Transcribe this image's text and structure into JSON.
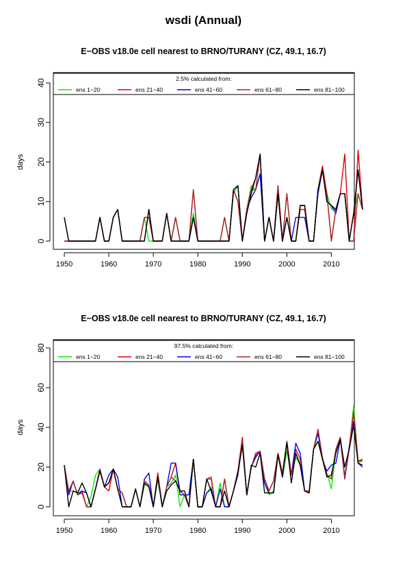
{
  "page_title": "wsdi (Annual)",
  "chart_data": [
    {
      "type": "line",
      "title": "E−OBS v18.0e cell nearest to BRNO/TURANY (CZ, 49.1, 16.7)",
      "legend_title": "2.5% calculated from:",
      "ylabel": "days",
      "xlim": [
        1950,
        2017
      ],
      "ylim": [
        0,
        40
      ],
      "x_ticks": [
        1950,
        1960,
        1970,
        1980,
        1990,
        2000,
        2010
      ],
      "y_ticks": [
        0,
        10,
        20,
        30,
        40
      ],
      "legend_position": "top",
      "x": [
        1950,
        1951,
        1952,
        1953,
        1954,
        1955,
        1956,
        1957,
        1958,
        1959,
        1960,
        1961,
        1962,
        1963,
        1964,
        1965,
        1966,
        1967,
        1968,
        1969,
        1970,
        1971,
        1972,
        1973,
        1974,
        1975,
        1976,
        1977,
        1978,
        1979,
        1980,
        1981,
        1982,
        1983,
        1984,
        1985,
        1986,
        1987,
        1988,
        1989,
        1990,
        1991,
        1992,
        1993,
        1994,
        1995,
        1996,
        1997,
        1998,
        1999,
        2000,
        2001,
        2002,
        2003,
        2004,
        2005,
        2006,
        2007,
        2008,
        2009,
        2010,
        2011,
        2012,
        2013,
        2014,
        2015,
        2016,
        2017
      ],
      "series": [
        {
          "name": "ens 1−20",
          "color": "#00ee00",
          "values": [
            0,
            0,
            0,
            0,
            0,
            0,
            0,
            0,
            6,
            0,
            0,
            6,
            8,
            0,
            0,
            0,
            0,
            0,
            6,
            0,
            0,
            0,
            0,
            7,
            0,
            6,
            0,
            0,
            0,
            7,
            0,
            0,
            0,
            0,
            0,
            0,
            0,
            0,
            12,
            14,
            0,
            8,
            14,
            13,
            17,
            0,
            6,
            0,
            12,
            0,
            6,
            0,
            0,
            9,
            9,
            0,
            0,
            13,
            18,
            12,
            8,
            8,
            12,
            12,
            0,
            7,
            12,
            8
          ]
        },
        {
          "name": "ens 21−40",
          "color": "#dd0000",
          "values": [
            0,
            0,
            0,
            0,
            0,
            0,
            0,
            0,
            6,
            0,
            0,
            6,
            8,
            0,
            0,
            0,
            0,
            0,
            6,
            6,
            0,
            0,
            0,
            7,
            0,
            6,
            0,
            0,
            0,
            13,
            0,
            0,
            0,
            0,
            0,
            0,
            6,
            0,
            13,
            10,
            0,
            8,
            13,
            16,
            22,
            0,
            6,
            0,
            14,
            0,
            12,
            0,
            0,
            8,
            8,
            0,
            0,
            13,
            19,
            12,
            0,
            8,
            12,
            22,
            0,
            0,
            23,
            8
          ]
        },
        {
          "name": "ens 41−60",
          "color": "#0000ee",
          "values": [
            6,
            0,
            0,
            0,
            0,
            0,
            0,
            0,
            6,
            0,
            0,
            6,
            8,
            0,
            0,
            0,
            0,
            0,
            0,
            8,
            0,
            0,
            0,
            7,
            0,
            0,
            0,
            0,
            0,
            6,
            0,
            0,
            0,
            0,
            0,
            0,
            0,
            0,
            13,
            14,
            0,
            8,
            11,
            13,
            17,
            0,
            6,
            0,
            12,
            0,
            6,
            0,
            6,
            6,
            6,
            0,
            0,
            12,
            18,
            10,
            9,
            7,
            12,
            12,
            0,
            7,
            18,
            8
          ]
        },
        {
          "name": "ens 61−80",
          "color": "#a52a2a",
          "values": [
            0,
            0,
            0,
            0,
            0,
            0,
            0,
            0,
            6,
            0,
            0,
            6,
            8,
            0,
            0,
            0,
            0,
            0,
            6,
            6,
            0,
            0,
            0,
            7,
            0,
            6,
            0,
            0,
            0,
            13,
            0,
            0,
            0,
            0,
            0,
            0,
            6,
            0,
            13,
            10,
            0,
            8,
            13,
            13,
            22,
            0,
            6,
            0,
            14,
            0,
            12,
            0,
            0,
            9,
            9,
            0,
            0,
            13,
            18,
            12,
            0,
            8,
            12,
            12,
            0,
            0,
            12,
            8
          ]
        },
        {
          "name": "ens 81−100",
          "color": "#000000",
          "values": [
            6,
            0,
            0,
            0,
            0,
            0,
            0,
            0,
            6,
            0,
            0,
            6,
            8,
            0,
            0,
            0,
            0,
            0,
            0,
            8,
            0,
            0,
            0,
            7,
            0,
            0,
            0,
            0,
            0,
            6,
            0,
            0,
            0,
            0,
            0,
            0,
            0,
            0,
            13,
            14,
            0,
            7,
            12,
            16,
            22,
            0,
            6,
            0,
            12,
            0,
            6,
            0,
            0,
            9,
            9,
            0,
            0,
            13,
            18,
            10,
            9,
            8,
            12,
            12,
            0,
            7,
            18,
            8
          ]
        }
      ]
    },
    {
      "type": "line",
      "title": "E−OBS v18.0e cell nearest to BRNO/TURANY (CZ, 49.1, 16.7)",
      "legend_title": "97.5% calculated from:",
      "ylabel": "days",
      "xlim": [
        1950,
        2017
      ],
      "ylim": [
        0,
        80
      ],
      "x_ticks": [
        1950,
        1960,
        1970,
        1980,
        1990,
        2000,
        2010
      ],
      "y_ticks": [
        0,
        20,
        40,
        60,
        80
      ],
      "legend_position": "top",
      "x": [
        1950,
        1951,
        1952,
        1953,
        1954,
        1955,
        1956,
        1957,
        1958,
        1959,
        1960,
        1961,
        1962,
        1963,
        1964,
        1965,
        1966,
        1967,
        1968,
        1969,
        1970,
        1971,
        1972,
        1973,
        1974,
        1975,
        1976,
        1977,
        1978,
        1979,
        1980,
        1981,
        1982,
        1983,
        1984,
        1985,
        1986,
        1987,
        1988,
        1989,
        1990,
        1991,
        1992,
        1993,
        1994,
        1995,
        1996,
        1997,
        1998,
        1999,
        2000,
        2001,
        2002,
        2003,
        2004,
        2005,
        2006,
        2007,
        2008,
        2009,
        2010,
        2011,
        2012,
        2013,
        2014,
        2015,
        2016,
        2017
      ],
      "series": [
        {
          "name": "ens 1−20",
          "color": "#00ee00",
          "values": [
            21,
            8,
            8,
            7,
            8,
            0,
            5,
            16,
            19,
            10,
            12,
            19,
            9,
            7,
            0,
            0,
            9,
            0,
            11,
            11,
            0,
            14,
            0,
            10,
            12,
            16,
            0,
            6,
            6,
            24,
            0,
            0,
            7,
            10,
            0,
            12,
            0,
            0,
            8,
            17,
            32,
            6,
            20,
            25,
            28,
            12,
            6,
            8,
            27,
            15,
            28,
            16,
            25,
            21,
            8,
            7,
            29,
            33,
            24,
            17,
            9,
            28,
            35,
            15,
            29,
            51,
            22,
            24
          ]
        },
        {
          "name": "ens 21−40",
          "color": "#dd0000",
          "values": [
            21,
            7,
            13,
            6,
            8,
            0,
            0,
            9,
            19,
            10,
            8,
            19,
            9,
            7,
            0,
            0,
            9,
            0,
            13,
            11,
            0,
            17,
            0,
            10,
            15,
            22,
            8,
            6,
            0,
            24,
            0,
            0,
            14,
            14,
            0,
            0,
            14,
            0,
            8,
            18,
            35,
            6,
            20,
            26,
            28,
            14,
            8,
            13,
            27,
            17,
            33,
            16,
            29,
            24,
            8,
            8,
            29,
            39,
            24,
            16,
            14,
            29,
            35,
            14,
            30,
            48,
            23,
            23
          ]
        },
        {
          "name": "ens 41−60",
          "color": "#0000ee",
          "values": [
            21,
            6,
            13,
            6,
            8,
            7,
            0,
            9,
            19,
            10,
            16,
            19,
            15,
            0,
            0,
            0,
            9,
            0,
            14,
            17,
            0,
            15,
            0,
            10,
            22,
            22,
            6,
            6,
            6,
            24,
            0,
            0,
            7,
            9,
            0,
            9,
            0,
            0,
            8,
            16,
            33,
            6,
            20,
            25,
            28,
            12,
            7,
            7,
            27,
            15,
            33,
            16,
            32,
            27,
            8,
            7,
            29,
            37,
            24,
            18,
            21,
            22,
            34,
            15,
            30,
            43,
            22,
            20
          ]
        },
        {
          "name": "ens 61−80",
          "color": "#a52a2a",
          "values": [
            21,
            8,
            13,
            6,
            7,
            0,
            0,
            9,
            19,
            10,
            12,
            19,
            9,
            7,
            0,
            0,
            9,
            0,
            13,
            11,
            0,
            17,
            0,
            10,
            15,
            13,
            8,
            6,
            0,
            24,
            0,
            0,
            14,
            15,
            0,
            0,
            14,
            0,
            8,
            18,
            33,
            6,
            20,
            27,
            28,
            14,
            8,
            13,
            27,
            17,
            33,
            16,
            27,
            21,
            8,
            7,
            29,
            39,
            25,
            16,
            14,
            29,
            35,
            14,
            29,
            47,
            23,
            24
          ]
        },
        {
          "name": "ens 81−100",
          "color": "#000000",
          "values": [
            21,
            0,
            8,
            7,
            12,
            7,
            0,
            9,
            18,
            10,
            12,
            19,
            9,
            0,
            0,
            0,
            9,
            0,
            12,
            10,
            0,
            15,
            0,
            8,
            11,
            13,
            8,
            8,
            0,
            24,
            0,
            0,
            14,
            8,
            0,
            0,
            8,
            0,
            8,
            17,
            31,
            6,
            21,
            20,
            27,
            7,
            7,
            7,
            26,
            15,
            32,
            12,
            27,
            21,
            8,
            7,
            29,
            33,
            24,
            15,
            16,
            27,
            34,
            20,
            29,
            41,
            22,
            21
          ]
        }
      ]
    }
  ]
}
